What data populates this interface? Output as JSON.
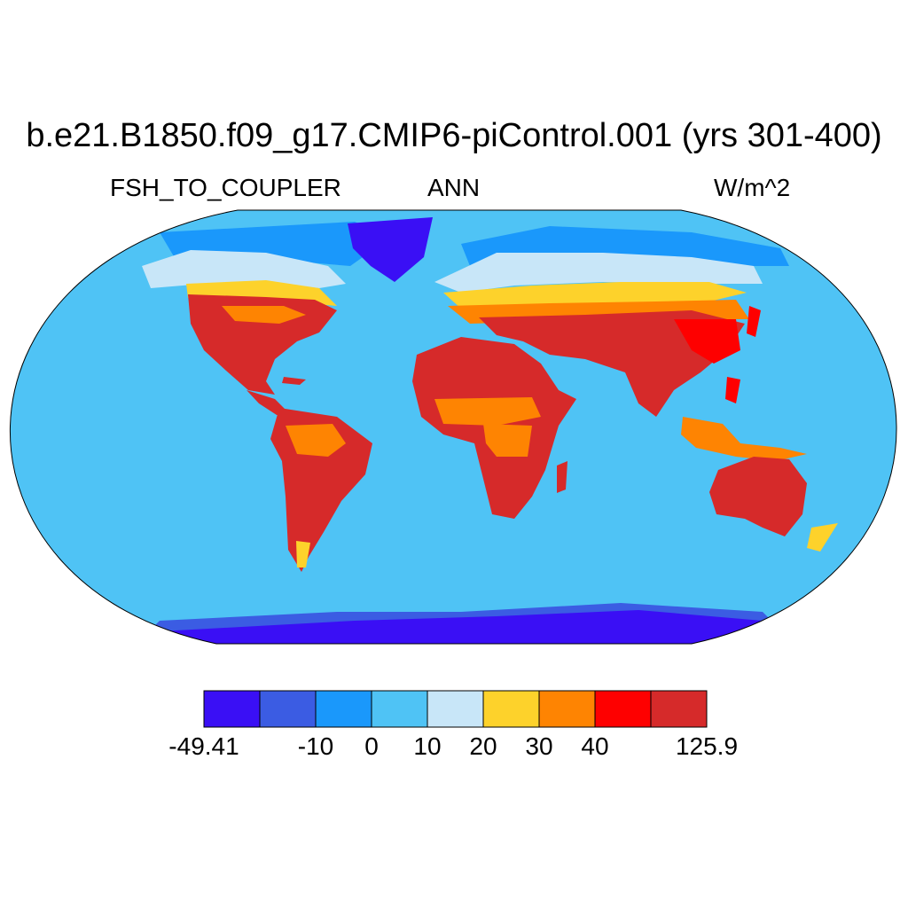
{
  "title": "b.e21.B1850.f09_g17.CMIP6-piControl.001 (yrs 301-400)",
  "variable": "FSH_TO_COUPLER",
  "season": "ANN",
  "units": "W/m^2",
  "colors": {
    "c1": "#3a0ff5",
    "c2": "#3b5ce3",
    "c3": "#1a98fb",
    "c4": "#4fc3f5",
    "c5": "#c8e6f8",
    "c6": "#fdd22b",
    "c7": "#fe8402",
    "c8": "#fe0000",
    "c9": "#d62a2a"
  },
  "colorbar": {
    "labels": [
      {
        "text": "-49.41",
        "boundary": 0
      },
      {
        "text": "-10",
        "boundary": 2
      },
      {
        "text": "0",
        "boundary": 3
      },
      {
        "text": "10",
        "boundary": 4
      },
      {
        "text": "20",
        "boundary": 5
      },
      {
        "text": "30",
        "boundary": 6
      },
      {
        "text": "40",
        "boundary": 7
      },
      {
        "text": "125.9",
        "boundary": 9
      }
    ]
  }
}
